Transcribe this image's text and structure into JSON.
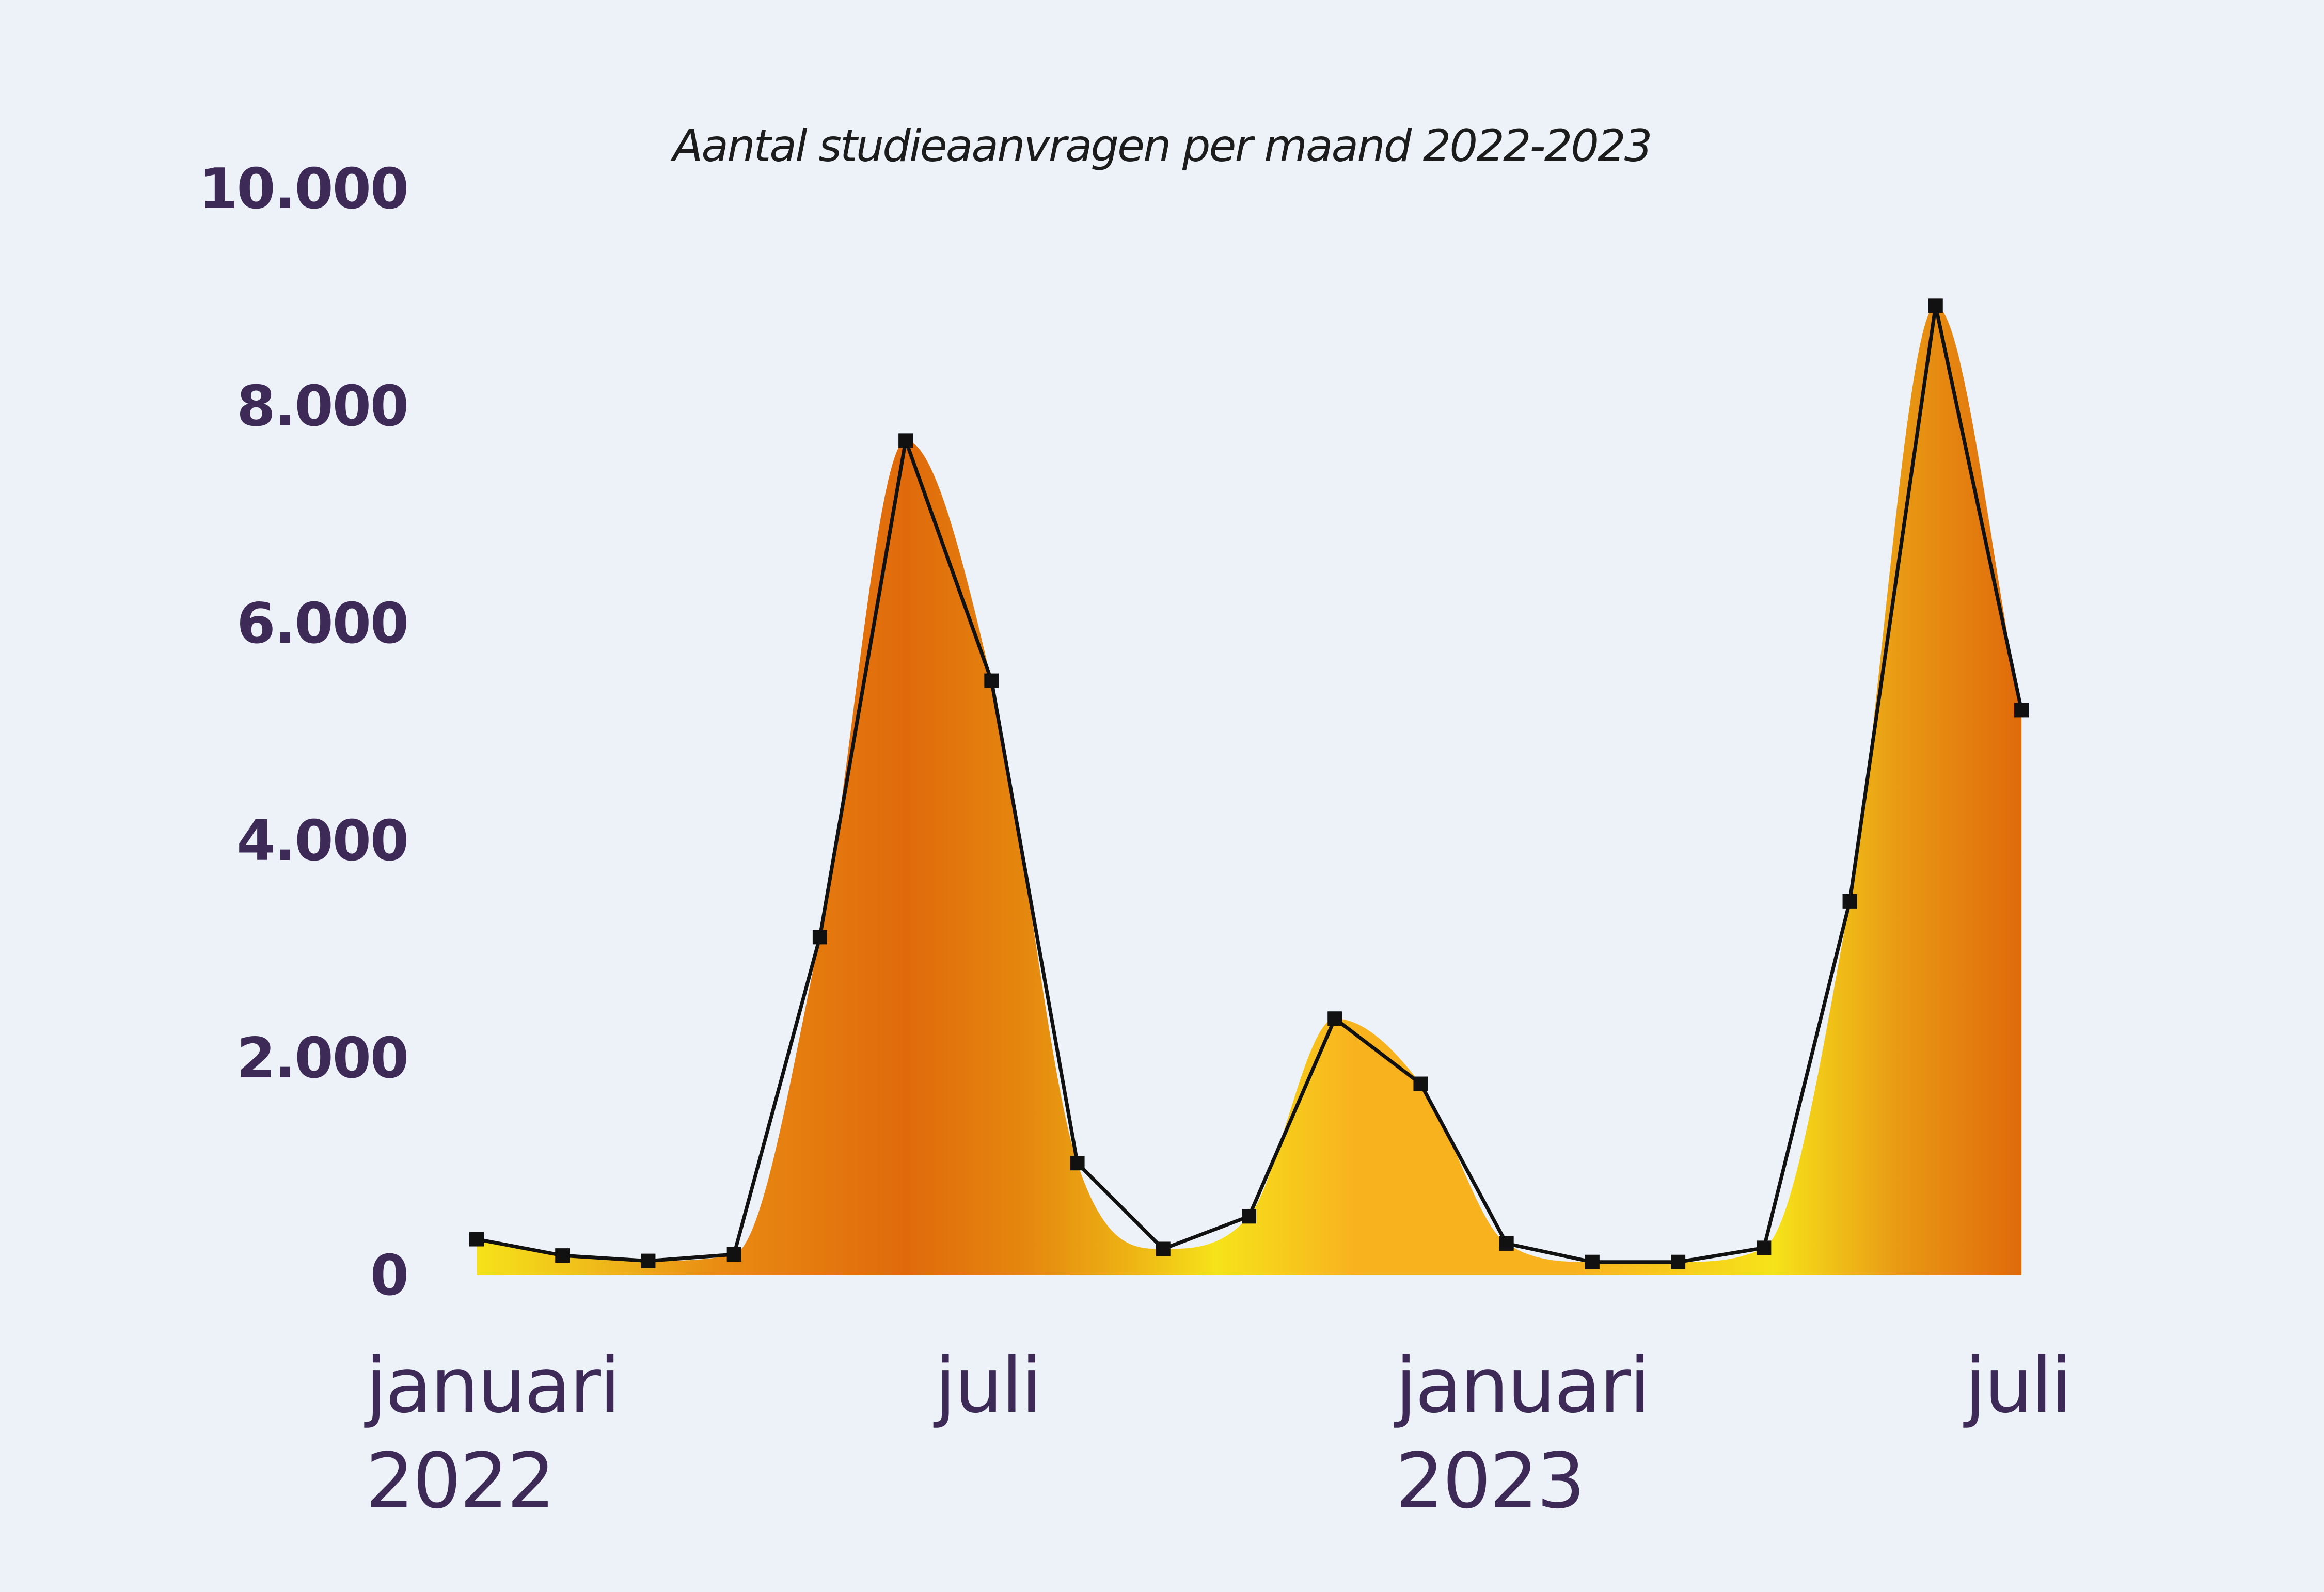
{
  "chart_data": {
    "type": "area",
    "title": "Aantal studieaanvragen per maand 2022-2023",
    "xlabel": "",
    "ylabel": "",
    "ylim": [
      0,
      10000
    ],
    "yticks": [
      {
        "value": 0,
        "label": "0"
      },
      {
        "value": 2000,
        "label": "2.000"
      },
      {
        "value": 4000,
        "label": "4.000"
      },
      {
        "value": 6000,
        "label": "6.000"
      },
      {
        "value": 8000,
        "label": "8.000"
      },
      {
        "value": 10000,
        "label": "10.000"
      }
    ],
    "x": [
      "2022-01",
      "2022-02",
      "2022-03",
      "2022-04",
      "2022-05",
      "2022-06",
      "2022-07",
      "2022-08",
      "2022-09",
      "2022-10",
      "2022-11",
      "2022-12",
      "2023-01",
      "2023-02",
      "2023-03",
      "2023-04",
      "2023-05",
      "2023-06",
      "2023-07"
    ],
    "xticks": [
      {
        "x": "2022-01",
        "line1": "januari",
        "line2": "2022"
      },
      {
        "x": "2022-07",
        "line1": "juli",
        "line2": ""
      },
      {
        "x": "2023-01",
        "line1": "januari",
        "line2": "2023"
      },
      {
        "x": "2023-07",
        "line1": "juli",
        "line2": ""
      }
    ],
    "series": [
      {
        "values": [
          330,
          180,
          130,
          190,
          3110,
          7680,
          5470,
          1030,
          240,
          540,
          2360,
          1760,
          290,
          120,
          120,
          250,
          3440,
          8920,
          5200
        ]
      }
    ],
    "grid": false,
    "legend": "none",
    "colors": {
      "line": "#111111",
      "marker": "#111111",
      "label": "#3d2a57",
      "background": "#edf2f9",
      "fill_dark": "#e06a0b",
      "fill_mid": "#f8b21e",
      "fill_light": "#f6e31a"
    }
  }
}
